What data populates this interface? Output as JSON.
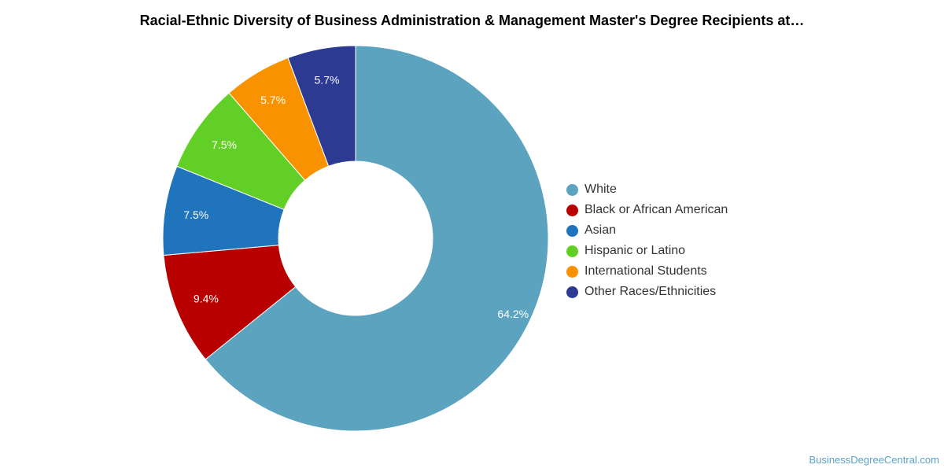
{
  "chart_data": {
    "type": "pie",
    "title": "Racial-Ethnic Diversity of Business Administration & Management Master's Degree Recipients at…",
    "donut": true,
    "legend_position": "right",
    "slices": [
      {
        "label": "White",
        "value": 64.2,
        "display": "64.2%",
        "color": "#5ba3bf"
      },
      {
        "label": "Black or African American",
        "value": 9.4,
        "display": "9.4%",
        "color": "#b80000"
      },
      {
        "label": "Asian",
        "value": 7.5,
        "display": "7.5%",
        "color": "#1f74bb"
      },
      {
        "label": "Hispanic or Latino",
        "value": 7.5,
        "display": "7.5%",
        "color": "#62cf27"
      },
      {
        "label": "International Students",
        "value": 5.7,
        "display": "5.7%",
        "color": "#f99200"
      },
      {
        "label": "Other Races/Ethnicities",
        "value": 5.7,
        "display": "5.7%",
        "color": "#2c3a92"
      }
    ]
  },
  "watermark": "BusinessDegreeCentral.com"
}
